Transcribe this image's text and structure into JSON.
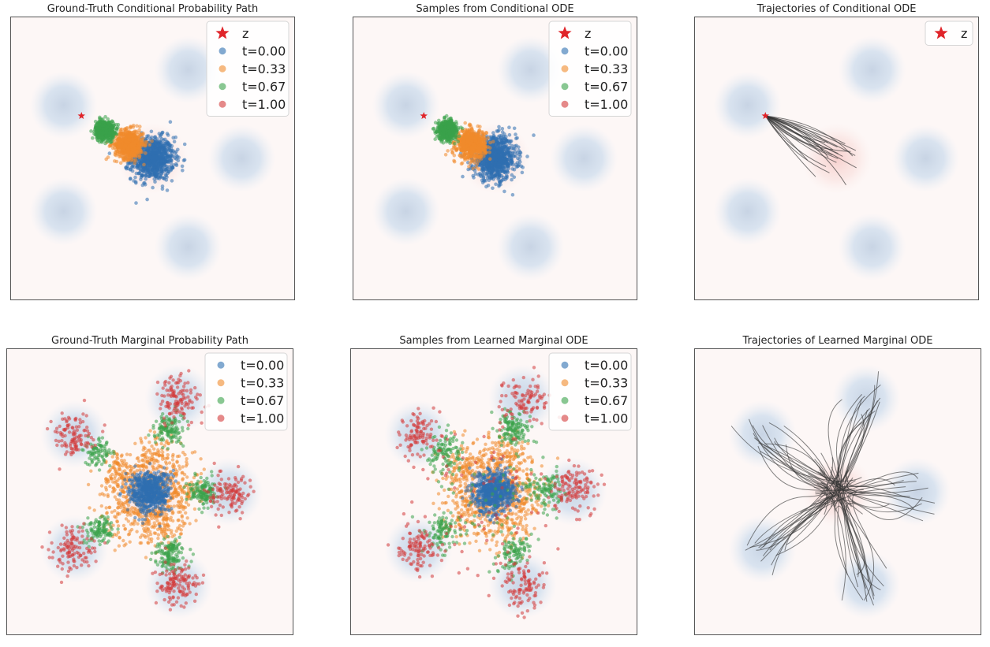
{
  "figure": {
    "description_grid": "2 rows x 3 columns of square scatter/trajectory panels",
    "colors": {
      "t0": "#2f6fb0",
      "t033": "#f08a2c",
      "t067": "#3aa24a",
      "t1": "#d43b3b",
      "z_marker": "#e0252a",
      "trajectory": "#333333",
      "background": "#fdf7f6",
      "target_blob": "#a9c6e2",
      "source_blob": "#f6c9c6"
    }
  },
  "chart_data": [
    {
      "type": "scatter",
      "title": "Ground-Truth Conditional Probability Path",
      "legend": [
        "z",
        "t=0.00",
        "t=0.33",
        "t=0.67",
        "t=1.00"
      ],
      "legend_position": "top-right",
      "z_point": [
        -2.0,
        1.2
      ],
      "source_gaussian": {
        "mean": [
          0.0,
          0.0
        ],
        "std": 0.4
      },
      "target_modes": [
        [
          1.0,
          2.5
        ],
        [
          2.5,
          0.0
        ],
        [
          1.0,
          -2.5
        ],
        [
          -2.5,
          -1.5
        ],
        [
          -2.5,
          1.5
        ]
      ],
      "series": [
        {
          "name": "t=0.00",
          "mean": [
            0.0,
            0.0
          ],
          "std": 0.3,
          "n": 900
        },
        {
          "name": "t=0.33",
          "mean": [
            -0.66,
            0.4
          ],
          "std": 0.2,
          "n": 700
        },
        {
          "name": "t=0.67",
          "mean": [
            -1.34,
            0.8
          ],
          "std": 0.13,
          "n": 600
        },
        {
          "name": "t=1.00",
          "mean": [
            -2.0,
            1.2
          ],
          "std": 0.0,
          "n": 1
        }
      ],
      "xlim": [
        -4,
        4
      ],
      "ylim": [
        -4,
        4
      ]
    },
    {
      "type": "scatter",
      "title": "Samples from Conditional ODE",
      "legend": [
        "z",
        "t=0.00",
        "t=0.33",
        "t=0.67",
        "t=1.00"
      ],
      "legend_position": "top-right",
      "z_point": [
        -2.0,
        1.2
      ],
      "source_gaussian": {
        "mean": [
          0.0,
          0.0
        ],
        "std": 0.4
      },
      "target_modes": [
        [
          1.0,
          2.5
        ],
        [
          2.5,
          0.0
        ],
        [
          1.0,
          -2.5
        ],
        [
          -2.5,
          -1.5
        ],
        [
          -2.5,
          1.5
        ]
      ],
      "series": [
        {
          "name": "t=0.00",
          "mean": [
            0.0,
            0.0
          ],
          "std": 0.3,
          "n": 900
        },
        {
          "name": "t=0.33",
          "mean": [
            -0.66,
            0.4
          ],
          "std": 0.2,
          "n": 700
        },
        {
          "name": "t=0.67",
          "mean": [
            -1.34,
            0.8
          ],
          "std": 0.13,
          "n": 600
        },
        {
          "name": "t=1.00",
          "mean": [
            -2.0,
            1.2
          ],
          "std": 0.0,
          "n": 1
        }
      ],
      "xlim": [
        -4,
        4
      ],
      "ylim": [
        -4,
        4
      ]
    },
    {
      "type": "line",
      "title": "Trajectories of Conditional ODE",
      "legend": [
        "z"
      ],
      "legend_position": "top-right",
      "z_point": [
        -2.0,
        1.2
      ],
      "source_gaussian": {
        "mean": [
          0.0,
          0.0
        ],
        "std": 0.4
      },
      "target_modes": [
        [
          1.0,
          2.5
        ],
        [
          2.5,
          0.0
        ],
        [
          1.0,
          -2.5
        ],
        [
          -2.5,
          -1.5
        ],
        [
          -2.5,
          1.5
        ]
      ],
      "trajectories": {
        "count": 22,
        "start_std": 0.3,
        "end": [
          -2.0,
          1.2
        ]
      },
      "xlim": [
        -4,
        4
      ],
      "ylim": [
        -4,
        4
      ]
    },
    {
      "type": "scatter",
      "title": "Ground-Truth Marginal Probability Path",
      "legend": [
        "t=0.00",
        "t=0.33",
        "t=0.67",
        "t=1.00"
      ],
      "legend_position": "top-right",
      "source_gaussian": {
        "mean": [
          0.0,
          0.0
        ],
        "std": 0.4
      },
      "target_modes": [
        [
          0.8,
          2.6
        ],
        [
          2.2,
          0.0
        ],
        [
          0.8,
          -2.6
        ],
        [
          -2.1,
          -1.6
        ],
        [
          -2.1,
          1.6
        ]
      ],
      "series": [
        {
          "name": "t=0.00",
          "mean": [
            0.0,
            0.0
          ],
          "std": 0.28,
          "n": 700
        },
        {
          "name": "t=0.33",
          "spread": "ring",
          "std": 0.35,
          "n": 800
        },
        {
          "name": "t=0.67",
          "fraction_to_modes": 0.67,
          "std": 0.2,
          "n": 600
        },
        {
          "name": "t=1.00",
          "fraction_to_modes": 1.0,
          "std": 0.3,
          "n": 600
        }
      ],
      "xlim": [
        -4,
        4
      ],
      "ylim": [
        -4,
        4
      ]
    },
    {
      "type": "scatter",
      "title": "Samples from Learned Marginal ODE",
      "legend": [
        "t=0.00",
        "t=0.33",
        "t=0.67",
        "t=1.00"
      ],
      "legend_position": "top-right",
      "source_gaussian": {
        "mean": [
          0.0,
          0.0
        ],
        "std": 0.4
      },
      "target_modes": [
        [
          0.8,
          2.6
        ],
        [
          2.2,
          0.0
        ],
        [
          0.8,
          -2.6
        ],
        [
          -2.1,
          -1.6
        ],
        [
          -2.1,
          1.6
        ]
      ],
      "series": [
        {
          "name": "t=0.00",
          "mean": [
            0.0,
            0.0
          ],
          "std": 0.28,
          "n": 700
        },
        {
          "name": "t=0.33",
          "spread": "ring",
          "std": 0.38,
          "n": 800
        },
        {
          "name": "t=0.67",
          "fraction_to_modes": 0.67,
          "std": 0.25,
          "n": 600
        },
        {
          "name": "t=1.00",
          "fraction_to_modes": 1.0,
          "std": 0.33,
          "n": 600
        }
      ],
      "xlim": [
        -4,
        4
      ],
      "ylim": [
        -4,
        4
      ]
    },
    {
      "type": "line",
      "title": "Trajectories of Learned Marginal ODE",
      "legend": [],
      "source_gaussian": {
        "mean": [
          0.0,
          0.0
        ],
        "std": 0.4
      },
      "target_modes": [
        [
          0.8,
          2.6
        ],
        [
          2.2,
          0.0
        ],
        [
          0.8,
          -2.6
        ],
        [
          -2.1,
          -1.6
        ],
        [
          -2.1,
          1.6
        ]
      ],
      "trajectories": {
        "count": 80,
        "start_std": 0.05
      },
      "xlim": [
        -4,
        4
      ],
      "ylim": [
        -4,
        4
      ]
    }
  ]
}
